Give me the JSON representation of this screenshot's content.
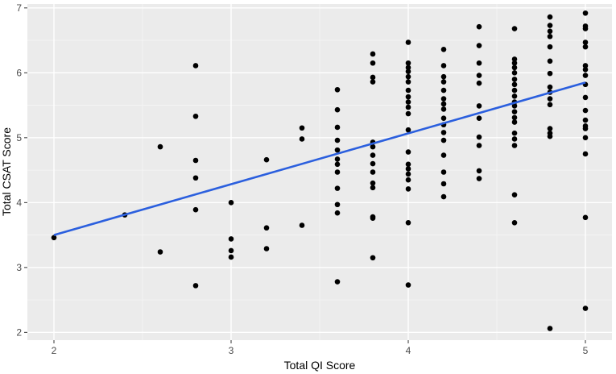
{
  "chart_data": {
    "type": "scatter",
    "xlabel": "Total QI Score",
    "ylabel": "Total CSAT Score",
    "xlim": [
      1.85,
      5.15
    ],
    "ylim": [
      1.88,
      7.06
    ],
    "xticks": [
      2,
      3,
      4,
      5
    ],
    "yticks": [
      2,
      3,
      4,
      5,
      6,
      7
    ],
    "grid": true,
    "legend": "none",
    "panel_background": "#ebebeb",
    "point_color": "#000000",
    "fit_color": "#2b5fde",
    "points": [
      [
        2.0,
        3.46
      ],
      [
        2.4,
        3.81
      ],
      [
        2.6,
        4.86
      ],
      [
        2.6,
        3.24
      ],
      [
        2.8,
        6.11
      ],
      [
        2.8,
        5.33
      ],
      [
        2.8,
        4.65
      ],
      [
        2.8,
        4.38
      ],
      [
        2.8,
        3.89
      ],
      [
        2.8,
        2.72
      ],
      [
        3.0,
        4.0
      ],
      [
        3.0,
        3.44
      ],
      [
        3.0,
        3.26
      ],
      [
        3.0,
        3.16
      ],
      [
        3.2,
        4.66
      ],
      [
        3.2,
        3.61
      ],
      [
        3.2,
        3.29
      ],
      [
        3.4,
        5.15
      ],
      [
        3.4,
        4.98
      ],
      [
        3.4,
        3.65
      ],
      [
        3.6,
        5.74
      ],
      [
        3.6,
        5.43
      ],
      [
        3.6,
        5.16
      ],
      [
        3.6,
        4.96
      ],
      [
        3.6,
        4.81
      ],
      [
        3.6,
        4.67
      ],
      [
        3.6,
        4.59
      ],
      [
        3.6,
        4.47
      ],
      [
        3.6,
        4.22
      ],
      [
        3.6,
        3.97
      ],
      [
        3.6,
        3.84
      ],
      [
        3.6,
        2.78
      ],
      [
        3.8,
        6.29
      ],
      [
        3.8,
        6.15
      ],
      [
        3.8,
        5.93
      ],
      [
        3.8,
        5.86
      ],
      [
        3.8,
        4.93
      ],
      [
        3.8,
        4.86
      ],
      [
        3.8,
        4.73
      ],
      [
        3.8,
        4.6
      ],
      [
        3.8,
        4.47
      ],
      [
        3.8,
        4.3
      ],
      [
        3.8,
        4.23
      ],
      [
        3.8,
        3.78
      ],
      [
        3.8,
        3.76
      ],
      [
        3.8,
        3.15
      ],
      [
        4.0,
        6.47
      ],
      [
        4.0,
        6.15
      ],
      [
        4.0,
        6.08
      ],
      [
        4.0,
        6.02
      ],
      [
        4.0,
        5.94
      ],
      [
        4.0,
        5.86
      ],
      [
        4.0,
        5.73
      ],
      [
        4.0,
        5.63
      ],
      [
        4.0,
        5.55
      ],
      [
        4.0,
        5.47
      ],
      [
        4.0,
        5.37
      ],
      [
        4.0,
        5.12
      ],
      [
        4.0,
        4.78
      ],
      [
        4.0,
        4.59
      ],
      [
        4.0,
        4.52
      ],
      [
        4.0,
        4.44
      ],
      [
        4.0,
        4.35
      ],
      [
        4.0,
        4.21
      ],
      [
        4.0,
        3.69
      ],
      [
        4.0,
        2.73
      ],
      [
        4.2,
        6.36
      ],
      [
        4.2,
        6.11
      ],
      [
        4.2,
        5.94
      ],
      [
        4.2,
        5.86
      ],
      [
        4.2,
        5.73
      ],
      [
        4.2,
        5.6
      ],
      [
        4.2,
        5.52
      ],
      [
        4.2,
        5.44
      ],
      [
        4.2,
        5.3
      ],
      [
        4.2,
        5.2
      ],
      [
        4.2,
        5.08
      ],
      [
        4.2,
        4.96
      ],
      [
        4.2,
        4.73
      ],
      [
        4.2,
        4.47
      ],
      [
        4.2,
        4.29
      ],
      [
        4.2,
        4.09
      ],
      [
        4.4,
        6.71
      ],
      [
        4.4,
        6.42
      ],
      [
        4.4,
        6.15
      ],
      [
        4.4,
        5.96
      ],
      [
        4.4,
        5.84
      ],
      [
        4.4,
        5.49
      ],
      [
        4.4,
        5.3
      ],
      [
        4.4,
        5.01
      ],
      [
        4.4,
        4.88
      ],
      [
        4.4,
        4.49
      ],
      [
        4.4,
        4.37
      ],
      [
        4.6,
        6.68
      ],
      [
        4.6,
        6.21
      ],
      [
        4.6,
        6.15
      ],
      [
        4.6,
        6.08
      ],
      [
        4.6,
        6.0
      ],
      [
        4.6,
        5.9
      ],
      [
        4.6,
        5.82
      ],
      [
        4.6,
        5.73
      ],
      [
        4.6,
        5.64
      ],
      [
        4.6,
        5.55
      ],
      [
        4.6,
        5.49
      ],
      [
        4.6,
        5.4
      ],
      [
        4.6,
        5.31
      ],
      [
        4.6,
        5.24
      ],
      [
        4.6,
        5.07
      ],
      [
        4.6,
        4.98
      ],
      [
        4.6,
        4.88
      ],
      [
        4.6,
        4.12
      ],
      [
        4.6,
        3.69
      ],
      [
        4.8,
        6.86
      ],
      [
        4.8,
        6.73
      ],
      [
        4.8,
        6.64
      ],
      [
        4.8,
        6.56
      ],
      [
        4.8,
        6.4
      ],
      [
        4.8,
        6.18
      ],
      [
        4.8,
        5.99
      ],
      [
        4.8,
        5.78
      ],
      [
        4.8,
        5.7
      ],
      [
        4.8,
        5.6
      ],
      [
        4.8,
        5.51
      ],
      [
        4.8,
        5.14
      ],
      [
        4.8,
        5.07
      ],
      [
        4.8,
        5.02
      ],
      [
        4.8,
        2.06
      ],
      [
        5.0,
        6.92
      ],
      [
        5.0,
        6.72
      ],
      [
        5.0,
        6.68
      ],
      [
        5.0,
        6.47
      ],
      [
        5.0,
        6.4
      ],
      [
        5.0,
        6.11
      ],
      [
        5.0,
        6.05
      ],
      [
        5.0,
        5.96
      ],
      [
        5.0,
        5.82
      ],
      [
        5.0,
        5.62
      ],
      [
        5.0,
        5.42
      ],
      [
        5.0,
        5.27
      ],
      [
        5.0,
        5.18
      ],
      [
        5.0,
        5.14
      ],
      [
        5.0,
        5.0
      ],
      [
        5.0,
        4.75
      ],
      [
        5.0,
        3.77
      ],
      [
        5.0,
        2.37
      ]
    ],
    "fit_line": {
      "x": [
        2.0,
        5.0
      ],
      "y": [
        3.5,
        5.85
      ]
    }
  }
}
